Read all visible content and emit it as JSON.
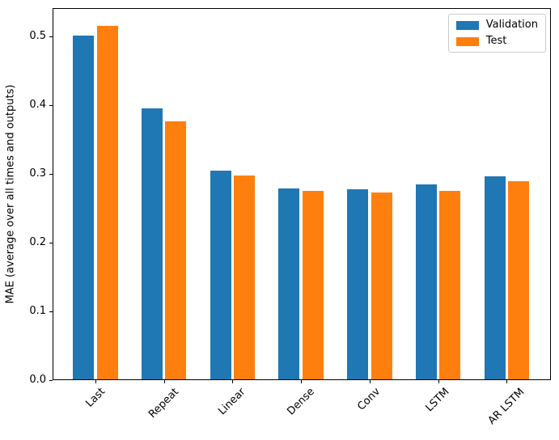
{
  "chart_data": {
    "type": "bar",
    "title": "",
    "categories": [
      "Last",
      "Repeat",
      "Linear",
      "Dense",
      "Conv",
      "LSTM",
      "AR LSTM"
    ],
    "series": [
      {
        "name": "Validation",
        "color": "#1f77b4",
        "values": [
          0.501,
          0.396,
          0.305,
          0.279,
          0.278,
          0.285,
          0.297
        ]
      },
      {
        "name": "Test",
        "color": "#ff7f0e",
        "values": [
          0.516,
          0.377,
          0.298,
          0.276,
          0.273,
          0.276,
          0.29
        ]
      }
    ],
    "xlabel": "",
    "ylabel": "MAE (average over all times and outputs)",
    "ylim": [
      0,
      0.5415
    ],
    "yticks": [
      0,
      0.1,
      0.2,
      0.3,
      0.4,
      0.5
    ],
    "ytick_labels": [
      "0.0",
      "0.1",
      "0.2",
      "0.3",
      "0.4",
      "0.5"
    ],
    "xtick_rotation": -45,
    "grid": false,
    "legend_position": "upper right",
    "axis_color": "#000000",
    "background": "#ffffff"
  }
}
